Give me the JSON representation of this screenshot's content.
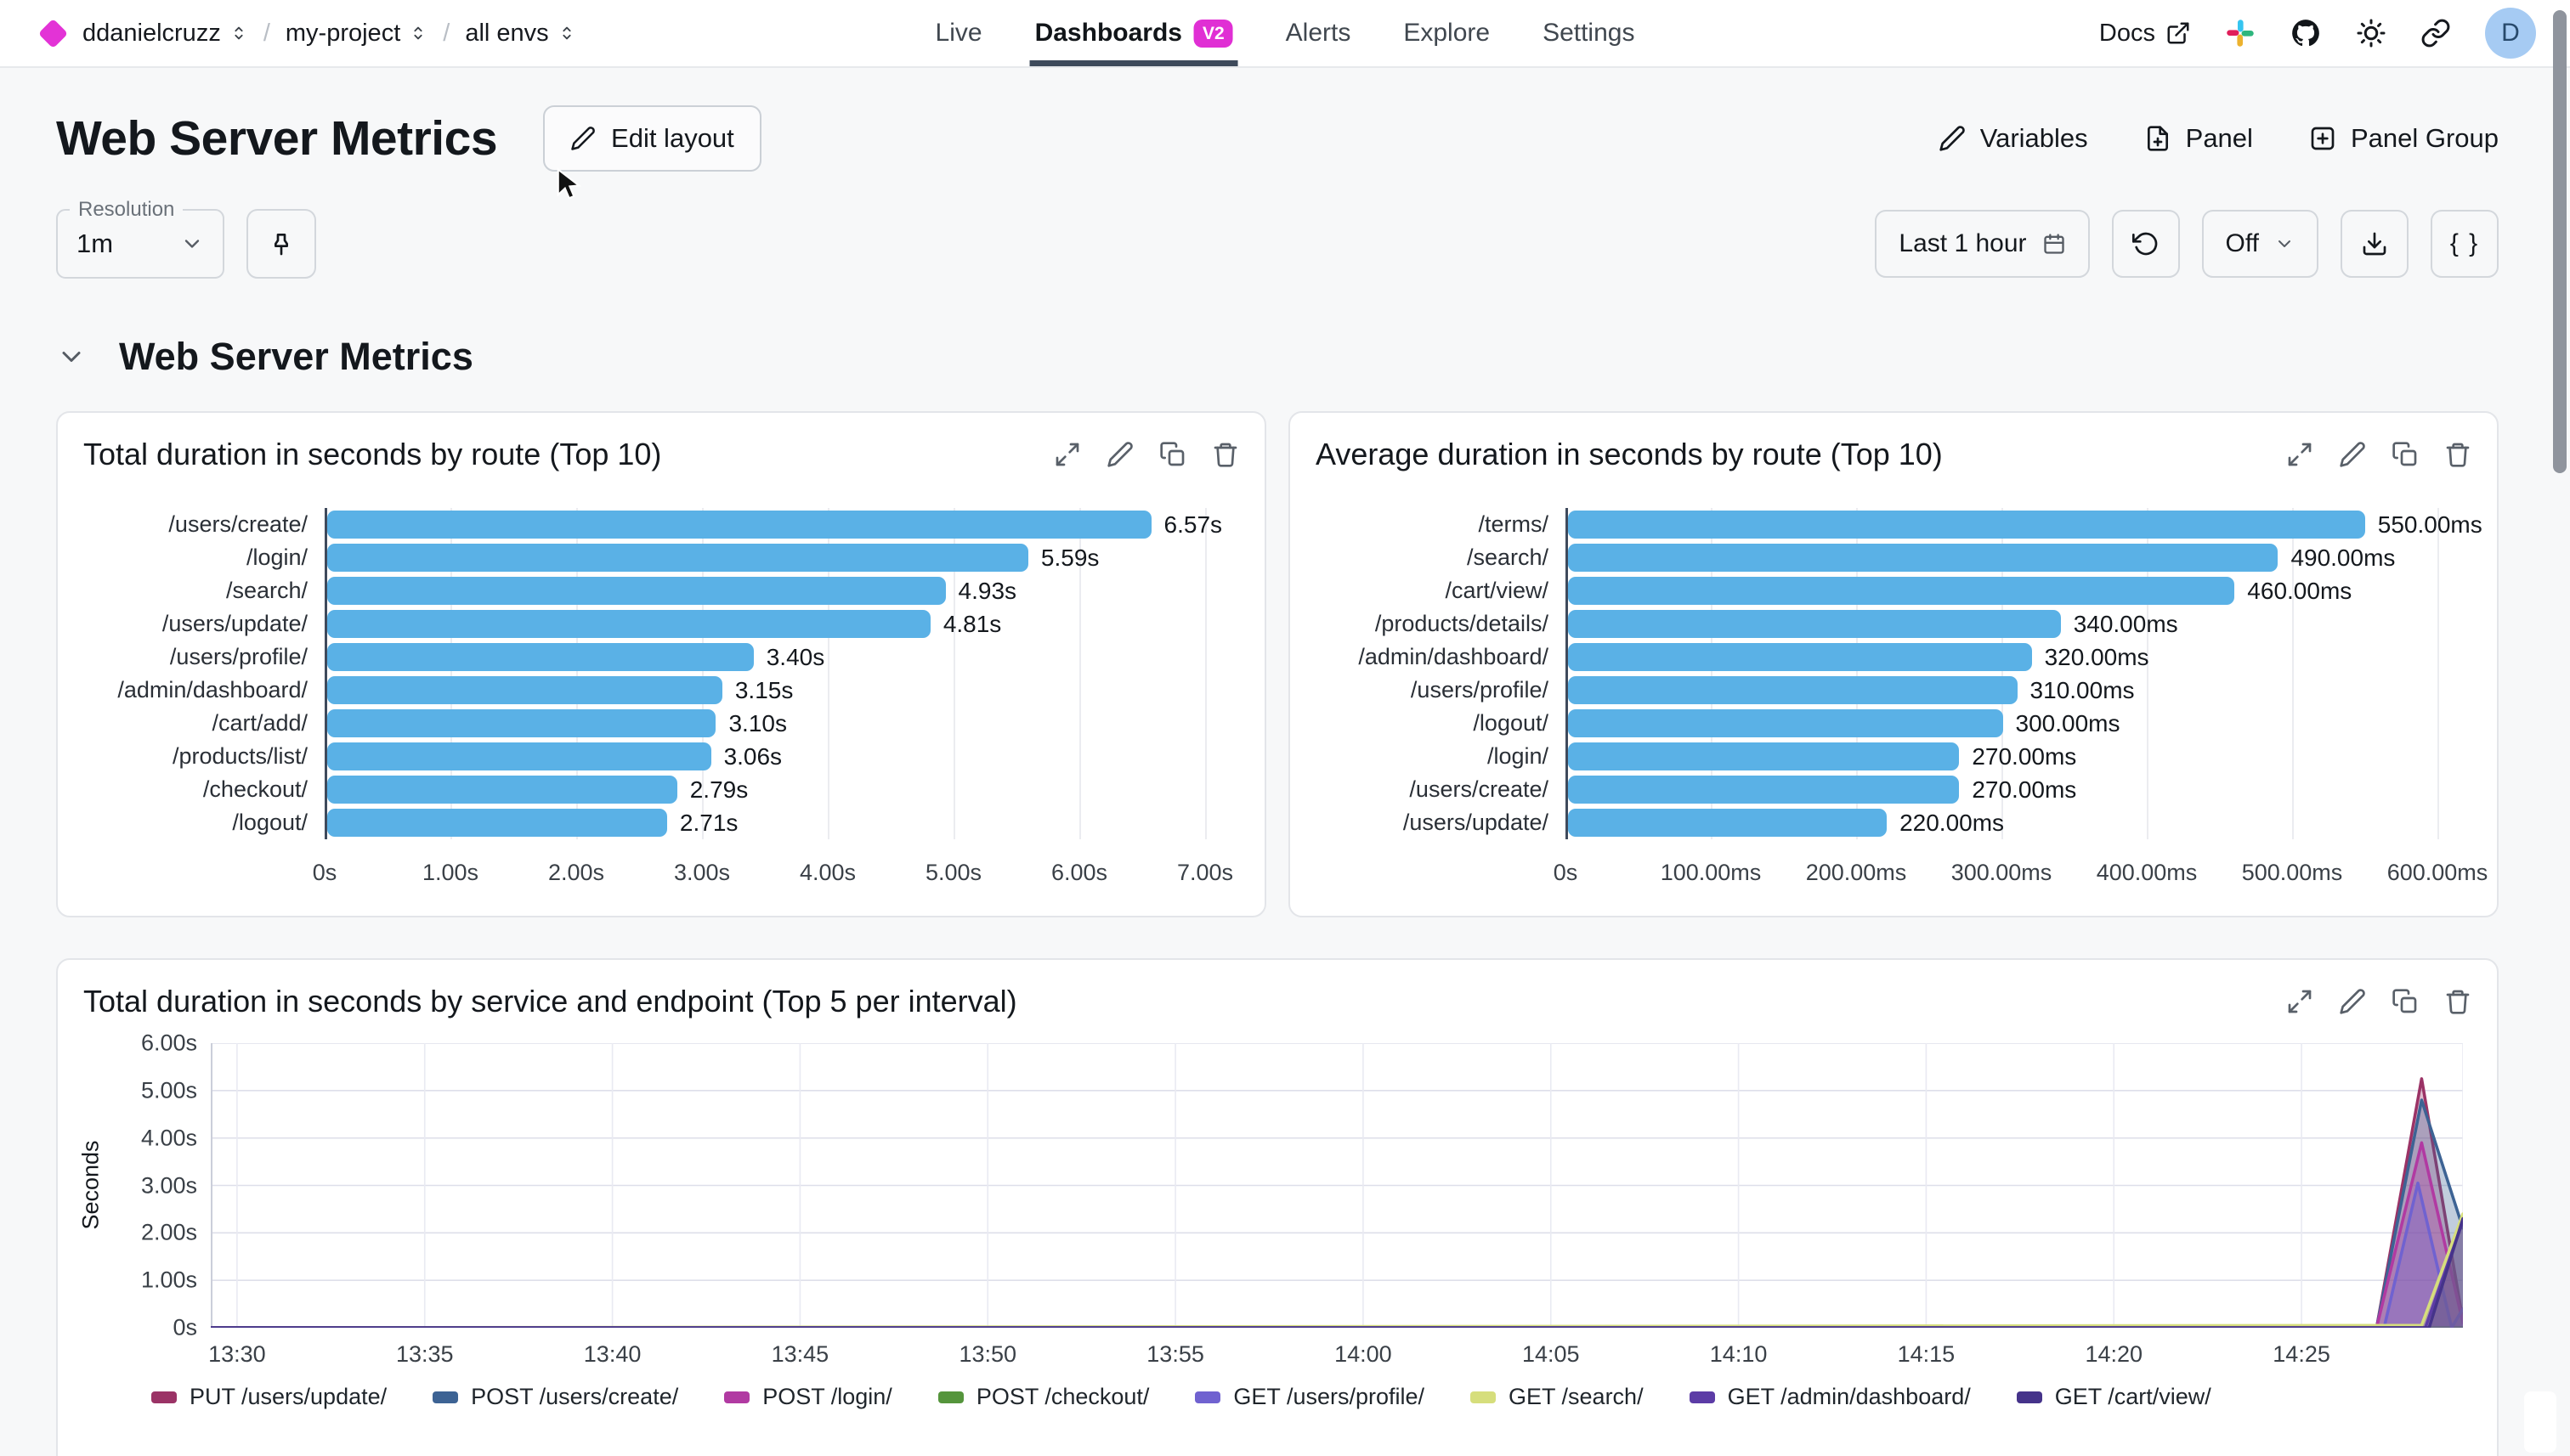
{
  "nav": {
    "breadcrumb": {
      "org": "ddanielcruzz",
      "project": "my-project",
      "env": "all envs",
      "separator": "/"
    },
    "tabs": [
      {
        "label": "Live",
        "active": false
      },
      {
        "label": "Dashboards",
        "badge": "V2",
        "active": true
      },
      {
        "label": "Alerts",
        "active": false
      },
      {
        "label": "Explore",
        "active": false
      },
      {
        "label": "Settings",
        "active": false
      }
    ],
    "docs_label": "Docs",
    "avatar_initial": "D",
    "icons": [
      "external-link-icon",
      "slack-icon",
      "github-icon",
      "theme-icon",
      "copy-link-icon"
    ]
  },
  "header": {
    "title": "Web Server Metrics",
    "edit_layout_label": "Edit layout",
    "variables_label": "Variables",
    "panel_label": "Panel",
    "panel_group_label": "Panel Group"
  },
  "controls": {
    "resolution_label": "Resolution",
    "resolution_value": "1m",
    "time_range": "Last 1 hour",
    "refresh_value": "Off",
    "code_button": "{ }",
    "icons": [
      "pin-icon",
      "calendar-icon",
      "refresh-icon",
      "chevron-down-icon",
      "download-icon"
    ]
  },
  "section": {
    "title": "Web Server Metrics"
  },
  "panel_action_icons": [
    "expand-icon",
    "edit-icon",
    "duplicate-icon",
    "delete-icon"
  ],
  "colors": {
    "accent_magenta": "#E333D6",
    "active_tab_underline": "#3E4A5B",
    "bar_blue": "#5AB1E6",
    "avatar_bg": "#A6CBF3",
    "page_bg": "#F7F8F9"
  },
  "chart_data": [
    {
      "type": "bar",
      "orientation": "horizontal",
      "title": "Total duration in seconds by route (Top 10)",
      "categories": [
        "/users/create/",
        "/login/",
        "/search/",
        "/users/update/",
        "/users/profile/",
        "/admin/dashboard/",
        "/cart/add/",
        "/products/list/",
        "/checkout/",
        "/logout/"
      ],
      "values": [
        6.57,
        5.59,
        4.93,
        4.81,
        3.4,
        3.15,
        3.1,
        3.06,
        2.79,
        2.71
      ],
      "value_labels": [
        "6.57s",
        "5.59s",
        "4.93s",
        "4.81s",
        "3.40s",
        "3.15s",
        "3.10s",
        "3.06s",
        "2.79s",
        "2.71s"
      ],
      "xticks": [
        "0s",
        "1.00s",
        "2.00s",
        "3.00s",
        "4.00s",
        "5.00s",
        "6.00s",
        "7.00s"
      ],
      "xmax": 7,
      "bar_color": "#5AB1E6"
    },
    {
      "type": "bar",
      "orientation": "horizontal",
      "title": "Average duration in seconds by route (Top 10)",
      "categories": [
        "/terms/",
        "/search/",
        "/cart/view/",
        "/products/details/",
        "/admin/dashboard/",
        "/users/profile/",
        "/logout/",
        "/login/",
        "/users/create/",
        "/users/update/"
      ],
      "values": [
        550,
        490,
        460,
        340,
        320,
        310,
        300,
        270,
        270,
        220
      ],
      "value_labels": [
        "550.00ms",
        "490.00ms",
        "460.00ms",
        "340.00ms",
        "320.00ms",
        "310.00ms",
        "300.00ms",
        "270.00ms",
        "270.00ms",
        "220.00ms"
      ],
      "xticks": [
        "0s",
        "100.00ms",
        "200.00ms",
        "300.00ms",
        "400.00ms",
        "500.00ms",
        "600.00ms"
      ],
      "xmax": 600,
      "bar_color": "#5AB1E6"
    },
    {
      "type": "area",
      "title": "Total duration in seconds by service and endpoint (Top 5 per interval)",
      "ylabel": "Seconds",
      "yticks": [
        "0s",
        "1.00s",
        "2.00s",
        "3.00s",
        "4.00s",
        "5.00s",
        "6.00s"
      ],
      "ylim": [
        0,
        6
      ],
      "xticks": [
        "13:30",
        "13:35",
        "13:40",
        "13:45",
        "13:50",
        "13:55",
        "14:00",
        "14:05",
        "14:10",
        "14:15",
        "14:20",
        "14:25"
      ],
      "tick_minutes": [
        0,
        5,
        10,
        15,
        20,
        25,
        30,
        35,
        40,
        45,
        50,
        55
      ],
      "x_domain": [
        -0.7,
        59.3
      ],
      "fill_opacity": 0.32,
      "grid": true,
      "legend_position": "bottom",
      "series": [
        {
          "name": "PUT /users/update/",
          "color": "#9B3366",
          "points": [
            [
              -0.7,
              0
            ],
            [
              57,
              0
            ],
            [
              58.2,
              5.25
            ],
            [
              59.3,
              0.15
            ]
          ]
        },
        {
          "name": "POST /users/create/",
          "color": "#3D6394",
          "points": [
            [
              -0.7,
              0
            ],
            [
              57,
              0
            ],
            [
              58.2,
              4.8
            ],
            [
              59.3,
              2.1
            ]
          ]
        },
        {
          "name": "POST /login/",
          "color": "#B13AA2",
          "points": [
            [
              -0.7,
              0
            ],
            [
              57,
              0
            ],
            [
              58.2,
              3.9
            ],
            [
              59.3,
              0.1
            ]
          ]
        },
        {
          "name": "POST /checkout/",
          "color": "#55953C",
          "points": [
            [
              -0.7,
              0
            ],
            [
              59.3,
              0
            ]
          ]
        },
        {
          "name": "GET /users/profile/",
          "color": "#7062D0",
          "points": [
            [
              -0.7,
              0
            ],
            [
              57.2,
              0
            ],
            [
              58.1,
              3.05
            ],
            [
              59,
              0
            ],
            [
              59.3,
              0.4
            ]
          ]
        },
        {
          "name": "GET /search/",
          "color": "#D6DE7C",
          "points": [
            [
              -0.7,
              0
            ],
            [
              58.2,
              0.05
            ],
            [
              59.3,
              2.4
            ]
          ]
        },
        {
          "name": "GET /admin/dashboard/",
          "color": "#5C3CA6",
          "points": [
            [
              -0.7,
              0
            ],
            [
              58.3,
              0
            ],
            [
              59.3,
              2.25
            ]
          ]
        },
        {
          "name": "GET /cart/view/",
          "color": "#45338A",
          "points": [
            [
              -0.7,
              0
            ],
            [
              58.4,
              0
            ],
            [
              59.3,
              2.3
            ]
          ]
        }
      ]
    }
  ]
}
